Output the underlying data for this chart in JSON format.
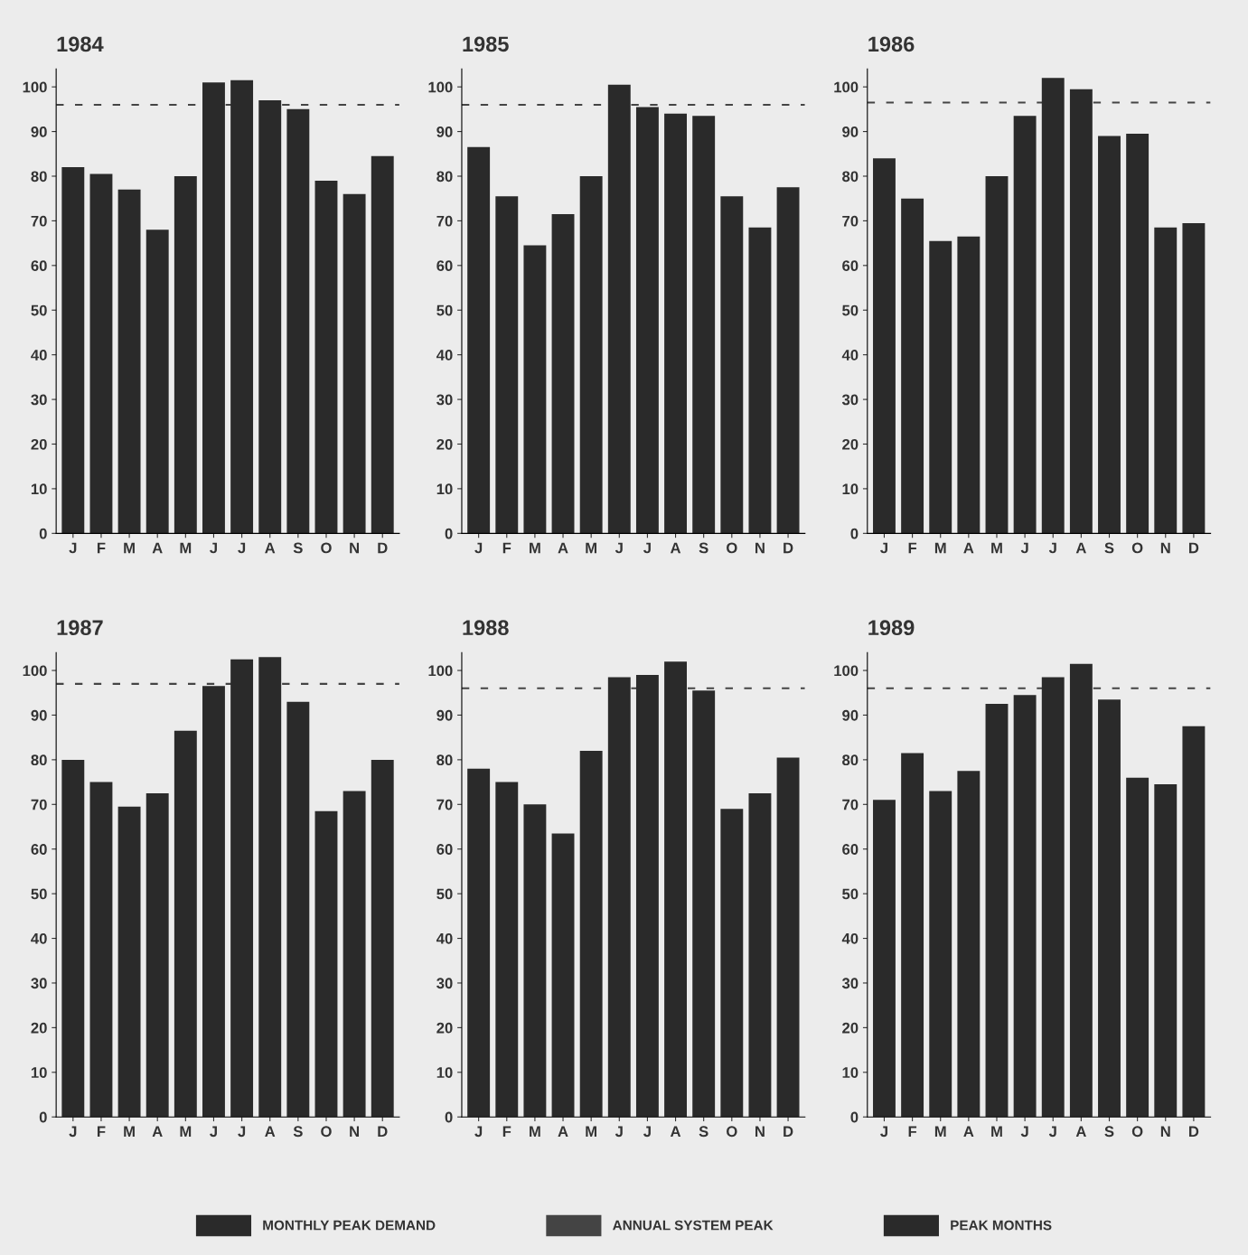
{
  "chart_data": [
    {
      "type": "bar",
      "title": "1984",
      "categories": [
        "J",
        "F",
        "M",
        "A",
        "M",
        "J",
        "J",
        "A",
        "S",
        "O",
        "N",
        "D"
      ],
      "ylim": [
        0,
        104
      ],
      "yticks": [
        0,
        10,
        20,
        30,
        40,
        50,
        60,
        70,
        80,
        90,
        100
      ],
      "series": [
        {
          "name": "MONTHLY PEAK DEMAND",
          "color": "#2a2a2a",
          "values": [
            82,
            80.5,
            77,
            68,
            80,
            101,
            101.5,
            97,
            95,
            79,
            76,
            84.5
          ]
        }
      ],
      "ref_lines": [
        {
          "axis": "y",
          "value": 96,
          "label": "ANNUAL SYSTEM PEAK",
          "color": "#444444",
          "line_style": "dashed"
        }
      ],
      "annotations": [
        "PEAK MONTHS"
      ],
      "legend": "bottom"
    },
    {
      "type": "bar",
      "title": "1985",
      "categories": [
        "J",
        "F",
        "M",
        "A",
        "M",
        "J",
        "J",
        "A",
        "S",
        "O",
        "N",
        "D"
      ],
      "ylim": [
        0,
        104
      ],
      "yticks": [
        0,
        10,
        20,
        30,
        40,
        50,
        60,
        70,
        80,
        90,
        100
      ],
      "series": [
        {
          "color": "#2a2a2a",
          "values": [
            86.5,
            75.5,
            64.5,
            71.5,
            80,
            100.5,
            95.5,
            94,
            93.5,
            75.5,
            68.5,
            77.5
          ]
        }
      ],
      "ref_lines": [
        {
          "axis": "y",
          "value": 96,
          "color": "#444444",
          "line_style": "dashed"
        }
      ]
    },
    {
      "type": "bar",
      "title": "1986",
      "categories": [
        "J",
        "F",
        "M",
        "A",
        "M",
        "J",
        "J",
        "A",
        "S",
        "O",
        "N",
        "D"
      ],
      "ylim": [
        0,
        104
      ],
      "yticks": [
        0,
        10,
        20,
        30,
        40,
        50,
        60,
        70,
        80,
        90,
        100
      ],
      "series": [
        {
          "color": "#2a2a2a",
          "values": [
            84,
            75,
            65.5,
            66.5,
            80,
            93.5,
            102,
            99.5,
            89,
            89.5,
            68.5,
            69.5
          ]
        }
      ],
      "ref_lines": [
        {
          "axis": "y",
          "value": 96.5,
          "color": "#444444",
          "line_style": "dashed"
        }
      ]
    },
    {
      "type": "bar",
      "title": "1987",
      "categories": [
        "J",
        "F",
        "M",
        "A",
        "M",
        "J",
        "J",
        "A",
        "S",
        "O",
        "N",
        "D"
      ],
      "ylim": [
        0,
        104
      ],
      "yticks": [
        0,
        10,
        20,
        30,
        40,
        50,
        60,
        70,
        80,
        90,
        100
      ],
      "series": [
        {
          "color": "#2a2a2a",
          "values": [
            80,
            75,
            69.5,
            72.5,
            86.5,
            96.5,
            102.5,
            103,
            93,
            68.5,
            73,
            80
          ]
        }
      ],
      "ref_lines": [
        {
          "axis": "y",
          "value": 97,
          "color": "#444444",
          "line_style": "dashed"
        }
      ]
    },
    {
      "type": "bar",
      "title": "1988",
      "categories": [
        "J",
        "F",
        "M",
        "A",
        "M",
        "J",
        "J",
        "A",
        "S",
        "O",
        "N",
        "D"
      ],
      "ylim": [
        0,
        104
      ],
      "yticks": [
        0,
        10,
        20,
        30,
        40,
        50,
        60,
        70,
        80,
        90,
        100
      ],
      "series": [
        {
          "color": "#2a2a2a",
          "values": [
            78,
            75,
            70,
            63.5,
            82,
            98.5,
            99,
            102,
            95.5,
            69,
            72.5,
            80.5
          ]
        }
      ],
      "ref_lines": [
        {
          "axis": "y",
          "value": 96,
          "color": "#444444",
          "line_style": "dashed"
        }
      ]
    },
    {
      "type": "bar",
      "title": "1989",
      "categories": [
        "J",
        "F",
        "M",
        "A",
        "M",
        "J",
        "J",
        "A",
        "S",
        "O",
        "N",
        "D"
      ],
      "ylim": [
        0,
        104
      ],
      "yticks": [
        0,
        10,
        20,
        30,
        40,
        50,
        60,
        70,
        80,
        90,
        100
      ],
      "series": [
        {
          "color": "#2a2a2a",
          "values": [
            71,
            81.5,
            73,
            77.5,
            92.5,
            94.5,
            98.5,
            101.5,
            93.5,
            76,
            74.5,
            87.5
          ]
        }
      ],
      "ref_lines": [
        {
          "axis": "y",
          "value": 96,
          "color": "#444444",
          "line_style": "dashed"
        }
      ]
    }
  ]
}
